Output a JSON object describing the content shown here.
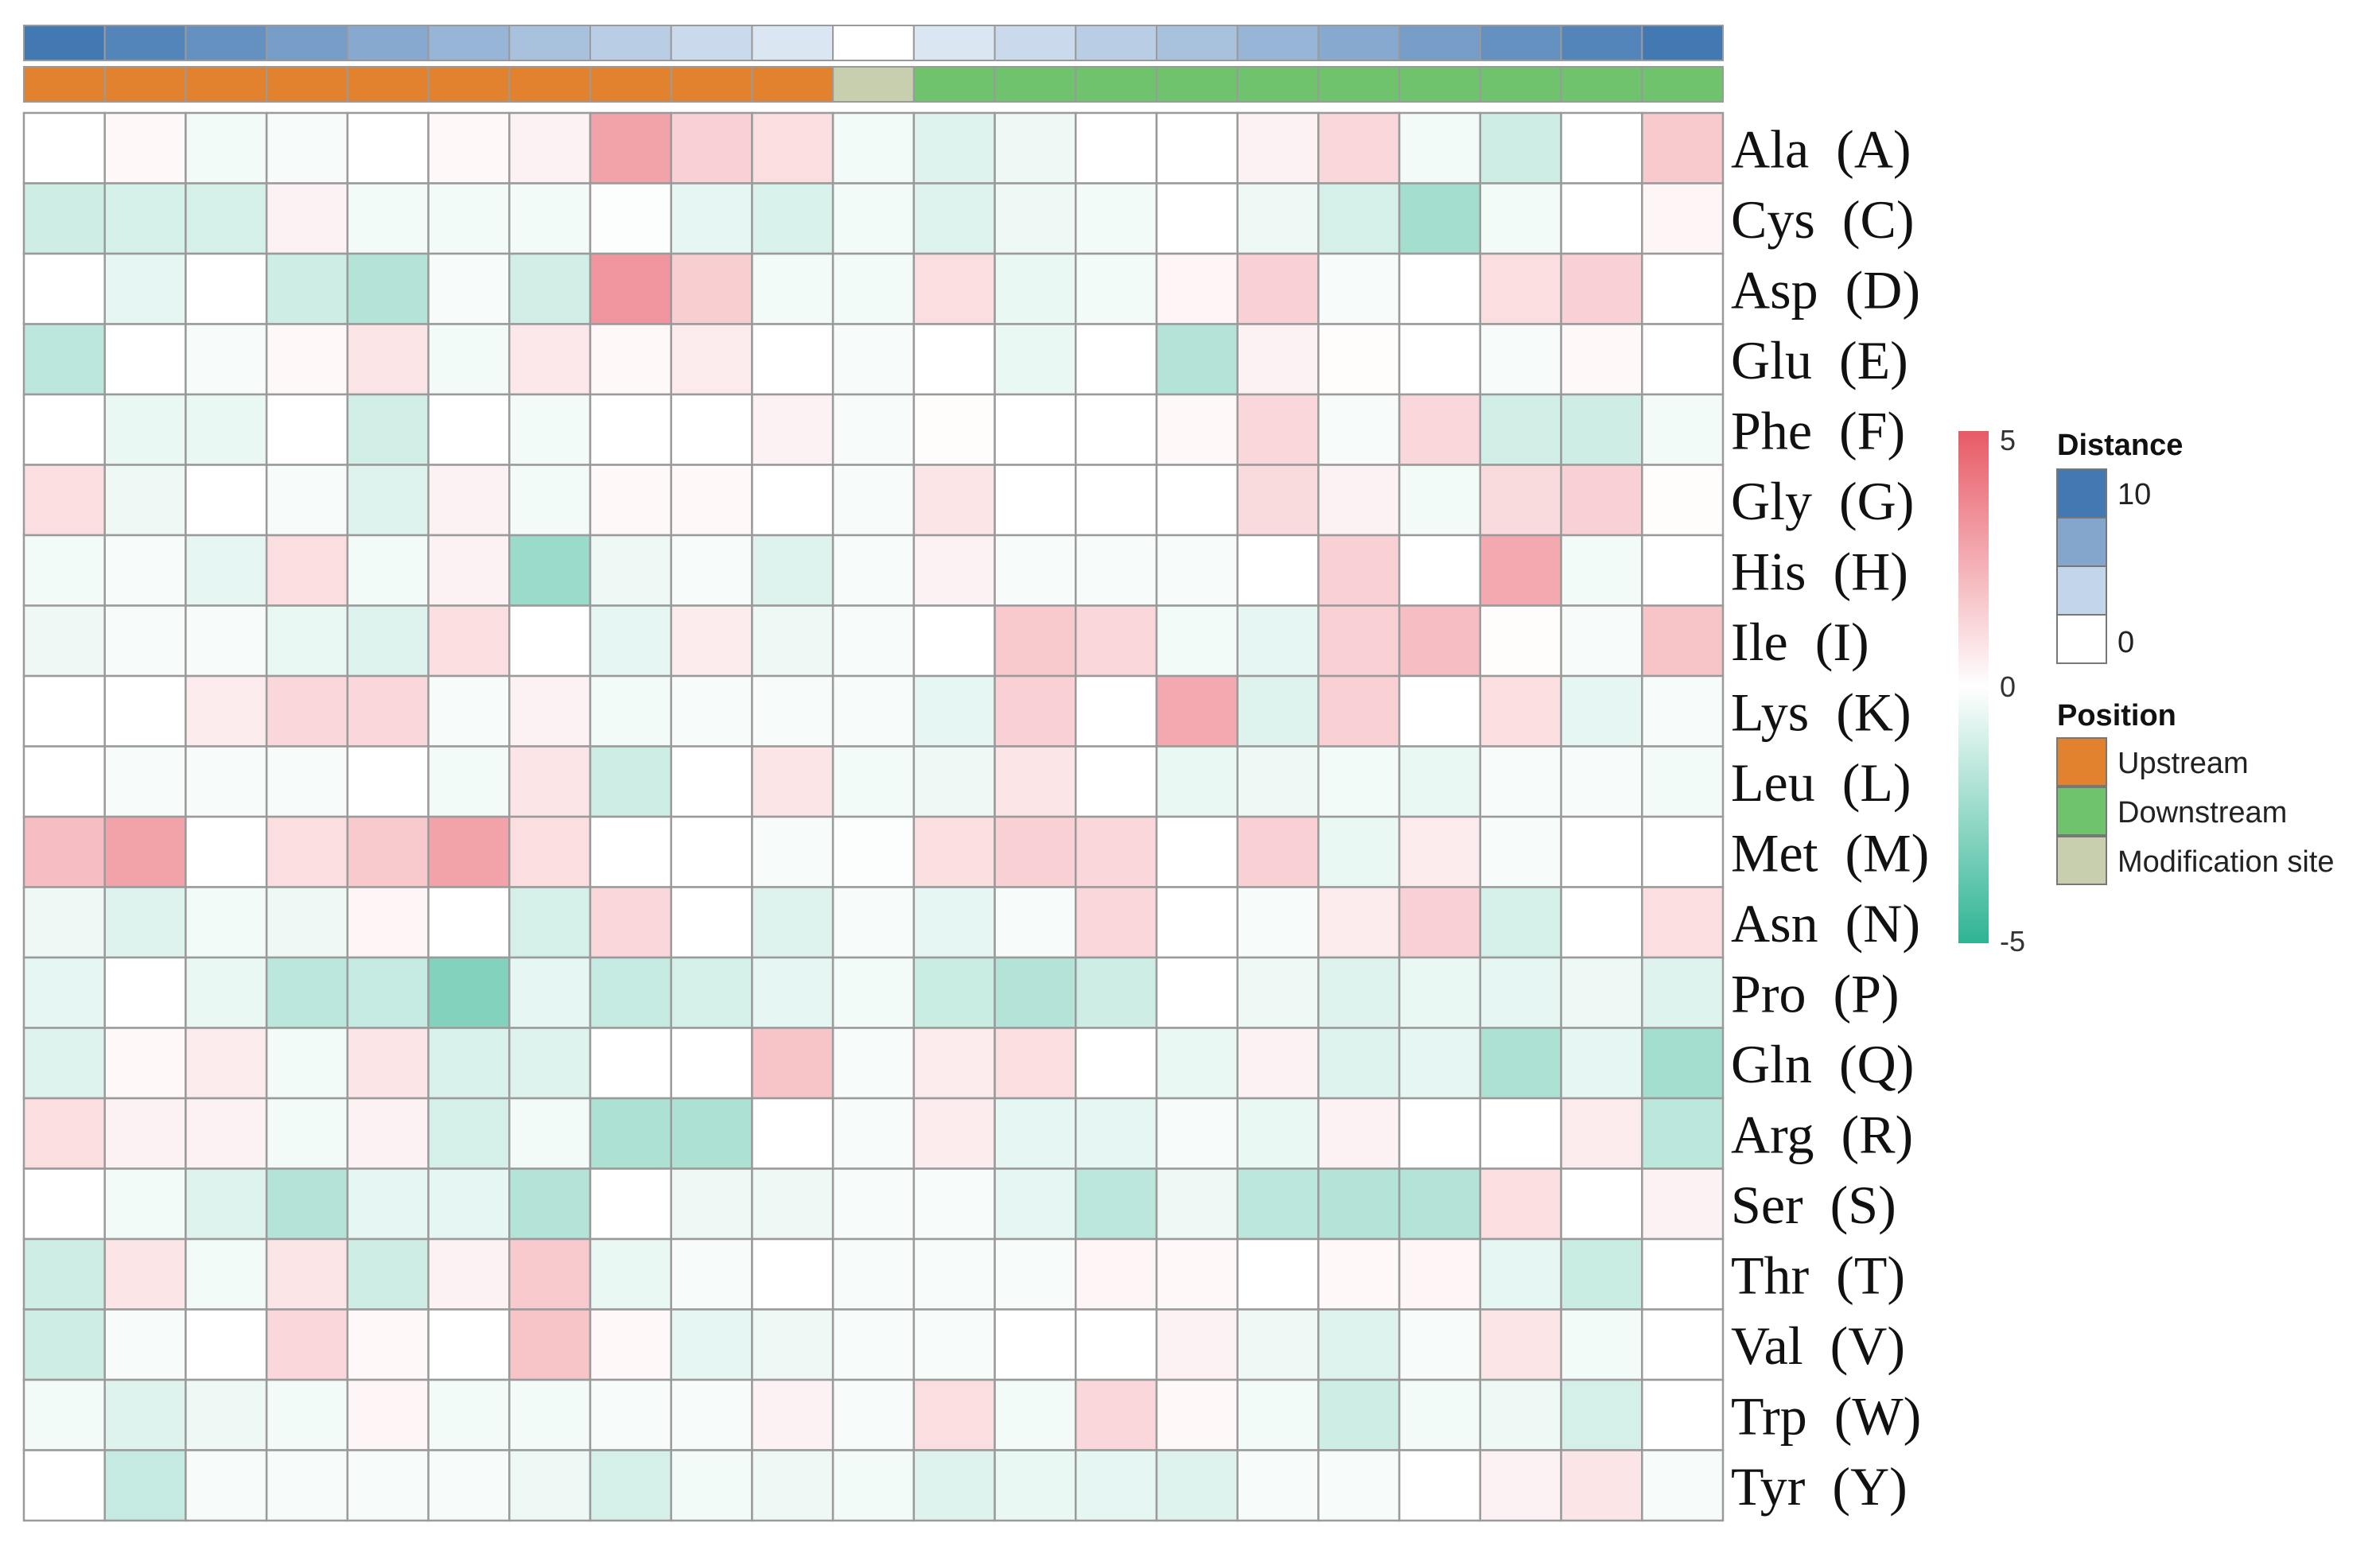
{
  "chart_data": {
    "type": "heatmap",
    "title": "",
    "xlabel": "",
    "ylabel": "",
    "rows": [
      "Ala  (A)",
      "Cys  (C)",
      "Asp  (D)",
      "Glu  (E)",
      "Phe  (F)",
      "Gly  (G)",
      "His  (H)",
      "Ile  (I)",
      "Lys  (K)",
      "Leu  (L)",
      "Met  (M)",
      "Asn  (N)",
      "Pro  (P)",
      "Gln  (Q)",
      "Arg  (R)",
      "Ser  (S)",
      "Thr  (T)",
      "Val  (V)",
      "Trp  (W)",
      "Tyr  (Y)"
    ],
    "values": [
      [
        0,
        0.2,
        -0.3,
        -0.2,
        0,
        0.2,
        0.4,
        2.8,
        1.4,
        1.0,
        -0.3,
        -0.8,
        -0.4,
        0,
        0,
        0.4,
        1.2,
        -0.3,
        -1.2,
        0,
        1.6
      ],
      [
        -1.2,
        -1.0,
        -1.0,
        0.4,
        -0.3,
        -0.3,
        -0.3,
        -0.1,
        -0.6,
        -0.9,
        -0.3,
        -0.8,
        -0.4,
        -0.3,
        0,
        -0.4,
        -1.0,
        -2.2,
        -0.3,
        0,
        0.3
      ],
      [
        0,
        -0.6,
        0,
        -1.2,
        -1.8,
        -0.2,
        -1.1,
        3.2,
        1.5,
        -0.3,
        -0.3,
        1.0,
        -0.5,
        -0.3,
        0.3,
        1.4,
        -0.2,
        0,
        1.0,
        1.4,
        0
      ],
      [
        -1.6,
        0,
        -0.2,
        0.2,
        0.8,
        -0.3,
        0.7,
        0.2,
        0.6,
        0,
        -0.2,
        0,
        -0.5,
        0,
        -1.8,
        0.4,
        0.1,
        0,
        -0.2,
        0.2,
        0
      ],
      [
        0,
        -0.5,
        -0.5,
        0,
        -1.1,
        0,
        -0.3,
        0,
        0,
        0.4,
        -0.2,
        0.1,
        0,
        0,
        0.2,
        1.2,
        -0.2,
        1.2,
        -1.1,
        -1.2,
        -0.3
      ],
      [
        1.0,
        -0.4,
        0,
        -0.2,
        -0.8,
        0.4,
        -0.3,
        0.2,
        0.2,
        0,
        -0.2,
        0.8,
        0,
        0,
        0,
        1.1,
        0.4,
        -0.3,
        1.1,
        1.4,
        0.1
      ],
      [
        -0.3,
        -0.2,
        -0.6,
        1.0,
        -0.3,
        0.4,
        -2.4,
        -0.4,
        -0.2,
        -0.8,
        -0.2,
        0.4,
        -0.2,
        -0.2,
        -0.2,
        0,
        1.4,
        0,
        2.6,
        -0.3,
        0
      ],
      [
        -0.4,
        -0.2,
        -0.2,
        -0.5,
        -0.8,
        1.0,
        0,
        -0.6,
        0.6,
        -0.4,
        -0.2,
        0,
        1.6,
        1.2,
        -0.3,
        -0.6,
        1.4,
        2.0,
        0.1,
        -0.2,
        1.8
      ],
      [
        0,
        0,
        0.6,
        1.2,
        1.2,
        -0.2,
        0.4,
        -0.3,
        -0.2,
        -0.2,
        -0.2,
        -0.6,
        1.4,
        0,
        2.6,
        -0.8,
        1.4,
        0,
        1.0,
        -0.6,
        -0.2
      ],
      [
        0,
        -0.2,
        -0.2,
        -0.2,
        0,
        -0.3,
        0.8,
        -1.2,
        0,
        0.8,
        -0.3,
        -0.4,
        0.8,
        0,
        -0.5,
        -0.4,
        -0.3,
        -0.5,
        -0.2,
        -0.2,
        -0.3
      ],
      [
        2.0,
        2.8,
        0,
        1.0,
        1.6,
        2.8,
        1.0,
        0,
        0,
        -0.2,
        -0.1,
        1.0,
        1.4,
        1.2,
        0,
        1.4,
        -0.5,
        0.6,
        -0.2,
        0,
        0
      ],
      [
        -0.4,
        -0.8,
        -0.3,
        -0.4,
        0.3,
        0,
        -1.0,
        1.2,
        0,
        -0.8,
        -0.2,
        -0.6,
        -0.2,
        1.2,
        0,
        -0.2,
        0.6,
        1.4,
        -1.0,
        0,
        1.0
      ],
      [
        -0.6,
        0,
        -0.5,
        -1.6,
        -1.4,
        -3.0,
        -0.6,
        -1.4,
        -1.0,
        -0.6,
        -0.3,
        -1.3,
        -1.8,
        -1.2,
        0,
        -0.4,
        -0.8,
        -0.5,
        -0.6,
        -0.4,
        -0.8
      ],
      [
        -0.8,
        0.2,
        0.6,
        -0.3,
        0.8,
        -0.9,
        -0.8,
        0,
        0,
        1.8,
        -0.2,
        0.6,
        1.0,
        0,
        -0.5,
        0.4,
        -0.8,
        -0.6,
        -2.0,
        -0.6,
        -2.2
      ],
      [
        1.0,
        0.4,
        0.4,
        -0.3,
        0.4,
        -1.0,
        -0.3,
        -2.0,
        -2.0,
        0,
        -0.2,
        0.6,
        -0.6,
        -0.6,
        -0.2,
        -0.5,
        0.4,
        0,
        0,
        0.6,
        -1.6
      ],
      [
        0,
        -0.3,
        -0.8,
        -1.8,
        -0.6,
        -0.6,
        -1.8,
        0,
        -0.4,
        -0.4,
        -0.2,
        -0.2,
        -0.6,
        -1.6,
        -0.4,
        -1.6,
        -1.8,
        -1.8,
        1.0,
        0,
        0.4
      ],
      [
        -1.2,
        0.8,
        -0.3,
        0.8,
        -1.2,
        0.4,
        1.6,
        -0.5,
        -0.2,
        0,
        -0.2,
        -0.2,
        -0.2,
        0.3,
        0.2,
        0,
        0.2,
        0.3,
        -0.6,
        -1.3,
        0
      ],
      [
        -1.2,
        -0.2,
        0,
        1.2,
        0.2,
        0,
        1.8,
        0.2,
        -0.6,
        -0.4,
        -0.2,
        -0.2,
        0,
        0,
        0.4,
        -0.4,
        -0.8,
        -0.2,
        0.8,
        -0.3,
        0
      ],
      [
        -0.3,
        -0.8,
        -0.4,
        -0.3,
        0.3,
        -0.3,
        -0.3,
        -0.2,
        -0.2,
        0.4,
        -0.2,
        1.0,
        -0.3,
        1.2,
        0.2,
        -0.3,
        -1.2,
        -0.3,
        -0.4,
        -1.0,
        0
      ],
      [
        0,
        -1.4,
        -0.2,
        -0.2,
        -0.2,
        -0.2,
        -0.4,
        -1.0,
        -0.3,
        -0.4,
        -0.3,
        -0.8,
        -0.5,
        -0.6,
        -0.8,
        -0.2,
        -0.2,
        0,
        0.4,
        0.8,
        -0.2
      ]
    ],
    "distance": [
      10,
      9,
      8,
      7,
      6,
      5,
      4,
      3,
      2,
      1,
      0,
      1,
      2,
      3,
      4,
      5,
      6,
      7,
      8,
      9,
      10
    ],
    "position": [
      "Upstream",
      "Upstream",
      "Upstream",
      "Upstream",
      "Upstream",
      "Upstream",
      "Upstream",
      "Upstream",
      "Upstream",
      "Upstream",
      "Modification site",
      "Downstream",
      "Downstream",
      "Downstream",
      "Downstream",
      "Downstream",
      "Downstream",
      "Downstream",
      "Downstream",
      "Downstream",
      "Downstream"
    ],
    "color_scale": {
      "min": -5,
      "mid": 0,
      "max": 5,
      "low_color": "#2fb493",
      "mid_color": "#ffffff",
      "high_color": "#e85a66",
      "tick_labels": [
        "5",
        "0",
        "-5"
      ]
    },
    "legend": {
      "distance_title": "Distance",
      "distance_labels": [
        "10",
        "0"
      ],
      "distance_colors": [
        "#4379b3",
        "#84a6cc",
        "#c3d5e9",
        "#ffffff"
      ],
      "position_title": "Position",
      "position_items": [
        {
          "label": "Upstream",
          "color": "#e3822e"
        },
        {
          "label": "Downstream",
          "color": "#6fc36c"
        },
        {
          "label": "Modification site",
          "color": "#c7cfaf"
        }
      ],
      "placement": "right"
    },
    "grid": true
  }
}
